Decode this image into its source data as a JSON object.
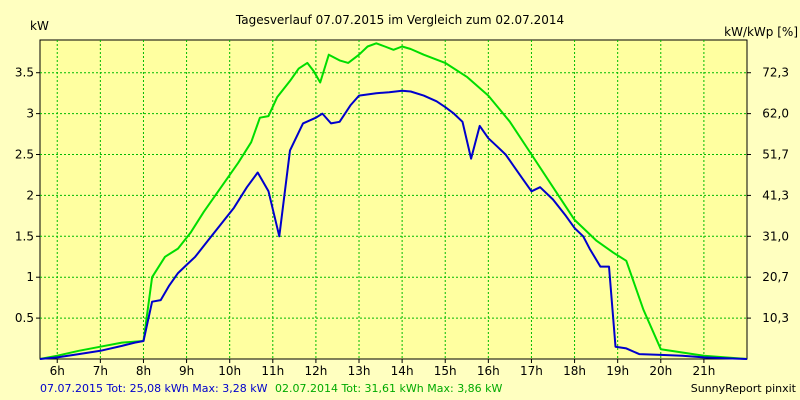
{
  "chart_data": {
    "type": "line",
    "title": "Tagesverlauf 07.07.2015 im Vergleich zum 02.07.2014",
    "ylabel_left": "kW",
    "ylabel_right": "kW/kWp [%]",
    "xlim": [
      5.6,
      22.0
    ],
    "ylim": [
      0,
      3.9
    ],
    "grid": true,
    "x_ticks": [
      6,
      7,
      8,
      9,
      10,
      11,
      12,
      13,
      14,
      15,
      16,
      17,
      18,
      19,
      20,
      21
    ],
    "x_tick_labels": [
      "6h",
      "7h",
      "8h",
      "9h",
      "10h",
      "11h",
      "12h",
      "13h",
      "14h",
      "15h",
      "16h",
      "17h",
      "18h",
      "19h",
      "20h",
      "21h"
    ],
    "y_ticks": [
      0.5,
      1,
      1.5,
      2,
      2.5,
      3,
      3.5
    ],
    "y_tick_labels": [
      "0.5",
      "1",
      "1.5",
      "2",
      "2.5",
      "3",
      "3.5"
    ],
    "y2_ticks": [
      0.5,
      1,
      1.5,
      2,
      2.5,
      3,
      3.5
    ],
    "y2_tick_labels": [
      "10,3",
      "20,7",
      "31,0",
      "41,3",
      "51,7",
      "62,0",
      "72,3"
    ],
    "series": [
      {
        "name": "07.07.2015",
        "color": "#0000cc",
        "x": [
          5.6,
          6.0,
          6.5,
          7.0,
          7.5,
          7.8,
          8.0,
          8.2,
          8.4,
          8.6,
          8.8,
          9.0,
          9.2,
          9.5,
          9.8,
          10.1,
          10.4,
          10.65,
          10.9,
          11.15,
          11.4,
          11.7,
          12.0,
          12.15,
          12.35,
          12.55,
          12.8,
          13.0,
          13.4,
          13.7,
          14.0,
          14.2,
          14.5,
          14.8,
          15.0,
          15.2,
          15.4,
          15.6,
          15.8,
          16.0,
          16.2,
          16.4,
          16.6,
          16.8,
          17.0,
          17.2,
          17.5,
          17.8,
          18.0,
          18.2,
          18.35,
          18.6,
          18.8,
          18.95,
          19.2,
          19.5,
          20.0,
          20.5,
          21.0,
          21.5,
          22.0
        ],
        "y": [
          0.0,
          0.02,
          0.06,
          0.1,
          0.16,
          0.2,
          0.22,
          0.7,
          0.72,
          0.9,
          1.05,
          1.15,
          1.25,
          1.45,
          1.65,
          1.85,
          2.1,
          2.28,
          2.05,
          1.5,
          2.55,
          2.88,
          2.95,
          3.0,
          2.88,
          2.9,
          3.1,
          3.22,
          3.25,
          3.26,
          3.28,
          3.27,
          3.22,
          3.15,
          3.08,
          3.0,
          2.9,
          2.45,
          2.85,
          2.7,
          2.6,
          2.5,
          2.35,
          2.2,
          2.05,
          2.1,
          1.95,
          1.75,
          1.6,
          1.5,
          1.35,
          1.13,
          1.13,
          0.15,
          0.13,
          0.06,
          0.05,
          0.04,
          0.02,
          0.01,
          0.0
        ]
      },
      {
        "name": "02.07.2014",
        "color": "#00dd00",
        "x": [
          5.6,
          6.0,
          6.5,
          7.0,
          7.5,
          8.0,
          8.2,
          8.5,
          8.8,
          9.1,
          9.4,
          9.8,
          10.2,
          10.5,
          10.7,
          10.9,
          11.1,
          11.4,
          11.6,
          11.8,
          11.95,
          12.1,
          12.3,
          12.55,
          12.75,
          13.0,
          13.2,
          13.4,
          13.6,
          13.8,
          14.0,
          14.2,
          14.5,
          15.0,
          15.5,
          16.0,
          16.5,
          17.0,
          17.5,
          18.0,
          18.5,
          18.9,
          19.2,
          19.6,
          20.0,
          20.5,
          21.0,
          21.5,
          22.0
        ],
        "y": [
          0.0,
          0.04,
          0.1,
          0.15,
          0.2,
          0.22,
          1.0,
          1.25,
          1.35,
          1.55,
          1.8,
          2.1,
          2.4,
          2.65,
          2.95,
          2.97,
          3.2,
          3.4,
          3.55,
          3.62,
          3.52,
          3.38,
          3.72,
          3.65,
          3.62,
          3.72,
          3.82,
          3.86,
          3.82,
          3.78,
          3.82,
          3.79,
          3.72,
          3.62,
          3.45,
          3.22,
          2.9,
          2.5,
          2.1,
          1.7,
          1.45,
          1.3,
          1.2,
          0.6,
          0.12,
          0.08,
          0.04,
          0.02,
          0.0
        ]
      }
    ],
    "footer": {
      "left_a": "07.07.2015 Tot: 25,08 kWh Max: 3,28 kW",
      "left_b": "02.07.2014 Tot: 31,61 kWh Max: 3,86 kW",
      "right": "SunnyReport pinxit"
    }
  }
}
